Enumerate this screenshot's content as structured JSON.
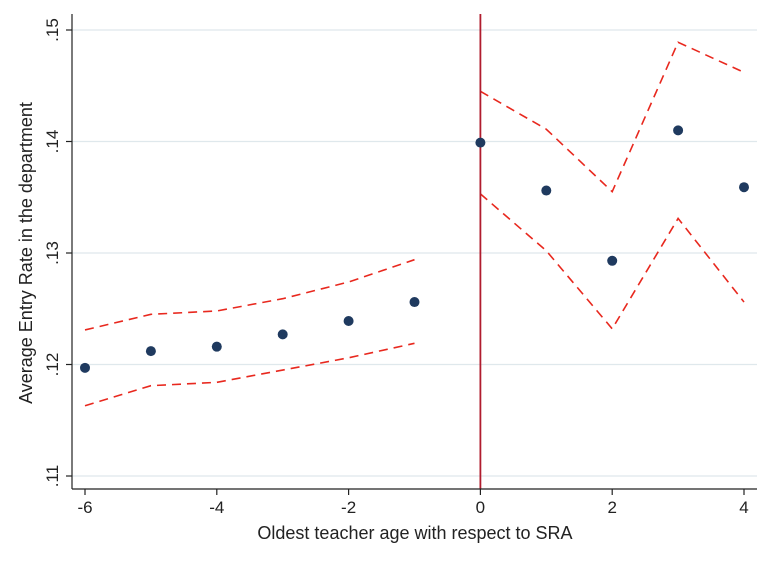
{
  "chart_data": {
    "type": "scatter",
    "title": "",
    "xlabel": "Oldest teacher age with respect to SRA",
    "ylabel": "Average Entry Rate in the department",
    "xlim": [
      -6,
      4
    ],
    "ylim": [
      0.11,
      0.15
    ],
    "x_ticks": [
      -6,
      -4,
      -2,
      0,
      2,
      4
    ],
    "x_tick_labels": [
      "-6",
      "-4",
      "-2",
      "0",
      "2",
      "4"
    ],
    "y_ticks": [
      0.11,
      0.12,
      0.13,
      0.14,
      0.15
    ],
    "y_tick_labels": [
      ".11",
      ".12",
      ".13",
      ".14",
      ".15"
    ],
    "grid": "horizontal",
    "points": {
      "x": [
        -6,
        -5,
        -4,
        -3,
        -2,
        -1,
        0,
        1,
        2,
        3,
        4
      ],
      "y": [
        0.1197,
        0.1212,
        0.1216,
        0.1227,
        0.1239,
        0.1256,
        0.1399,
        0.1356,
        0.1293,
        0.141,
        0.1359
      ]
    },
    "ci_segments": [
      {
        "x": [
          -6,
          -5,
          -4,
          -3,
          -2,
          -1
        ],
        "upper": [
          0.1231,
          0.1245,
          0.1248,
          0.1259,
          0.1274,
          0.1294
        ],
        "lower": [
          0.1163,
          0.1181,
          0.1184,
          0.1195,
          0.1206,
          0.1219
        ]
      },
      {
        "x": [
          0,
          1,
          2,
          3,
          4
        ],
        "upper": [
          0.1445,
          0.1411,
          0.1355,
          0.1489,
          0.1462
        ],
        "lower": [
          0.1353,
          0.1302,
          0.1232,
          0.1331,
          0.1256
        ]
      }
    ],
    "threshold_x": 0,
    "colors": {
      "points": "#1f3a5f",
      "ci": "#e8281e",
      "threshold": "#b01c2e",
      "grid": "#dfe8ec",
      "axis": "#222222"
    }
  }
}
